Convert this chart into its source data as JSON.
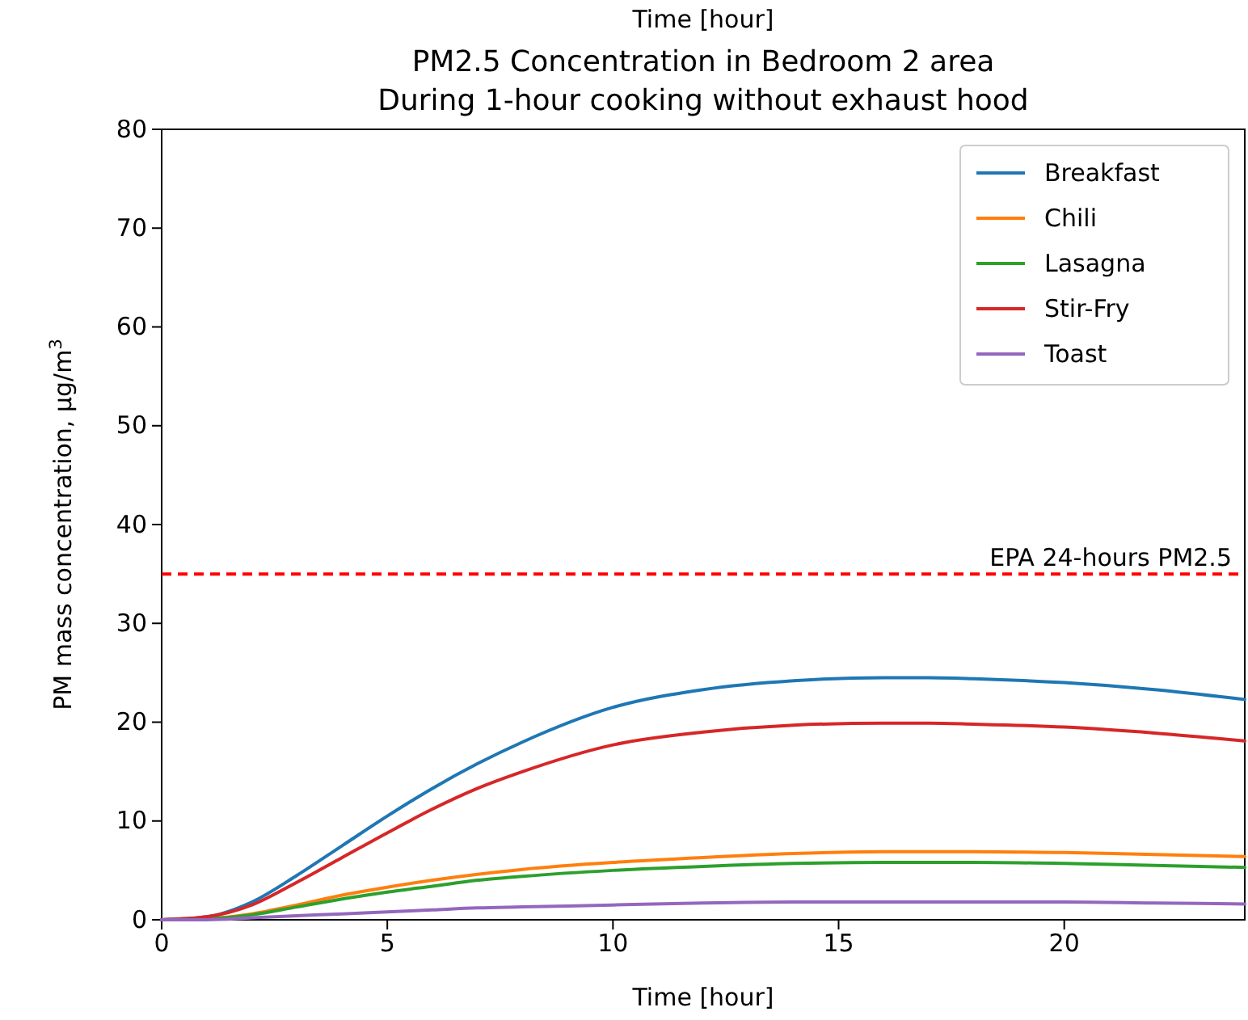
{
  "chart_data": {
    "type": "line",
    "title": "PM2.5 Concentration in Bedroom 2 area",
    "subtitle": "During 1-hour cooking without exhaust hood",
    "xlabel": "Time [hour]",
    "ylabel": "PM mass concentration, μg/m$^{3}$",
    "annotations": [
      "Time [hour]"
    ],
    "x": [
      0,
      1,
      2,
      3,
      4,
      5,
      6,
      7,
      8,
      10,
      12,
      14,
      16,
      17,
      18,
      20,
      22,
      24
    ],
    "series": [
      {
        "name": "Breakfast",
        "color": "#1f77b4",
        "values": [
          0,
          0.3,
          1.8,
          4.5,
          7.5,
          10.5,
          13.3,
          15.8,
          18,
          21.5,
          23.3,
          24.2,
          24.5,
          24.5,
          24.4,
          24,
          23.3,
          22.3
        ]
      },
      {
        "name": "Chili",
        "color": "#ff7f0e",
        "values": [
          0,
          0.1,
          0.6,
          1.5,
          2.5,
          3.3,
          4.0,
          4.6,
          5.1,
          5.8,
          6.3,
          6.7,
          6.9,
          6.9,
          6.9,
          6.8,
          6.6,
          6.4
        ]
      },
      {
        "name": "Lasagna",
        "color": "#2ca02c",
        "values": [
          0,
          0.1,
          0.5,
          1.3,
          2.1,
          2.8,
          3.4,
          4.0,
          4.4,
          5.0,
          5.4,
          5.7,
          5.8,
          5.8,
          5.8,
          5.7,
          5.5,
          5.3
        ]
      },
      {
        "name": "Stir-Fry",
        "color": "#d62728",
        "values": [
          0,
          0.3,
          1.5,
          3.8,
          6.3,
          8.8,
          11.2,
          13.3,
          15,
          17.7,
          19,
          19.7,
          19.9,
          19.9,
          19.8,
          19.5,
          18.9,
          18.1
        ]
      },
      {
        "name": "Toast",
        "color": "#9467bd",
        "values": [
          0,
          0,
          0.2,
          0.4,
          0.6,
          0.8,
          1.0,
          1.2,
          1.3,
          1.5,
          1.7,
          1.8,
          1.8,
          1.8,
          1.8,
          1.8,
          1.7,
          1.6
        ]
      }
    ],
    "ref_lines": [
      {
        "axis": "y",
        "value": 35,
        "label": "EPA 24-hours PM2.5",
        "color": "#ff0000",
        "line_style": "dashed"
      }
    ],
    "xlim": [
      0,
      24
    ],
    "xticks": [
      0,
      5,
      10,
      15,
      20
    ],
    "ylim": [
      0,
      80
    ],
    "yticks": [
      0,
      10,
      20,
      30,
      40,
      50,
      60,
      70,
      80
    ],
    "legend": "top right",
    "grid": false,
    "line_style": "solid"
  }
}
